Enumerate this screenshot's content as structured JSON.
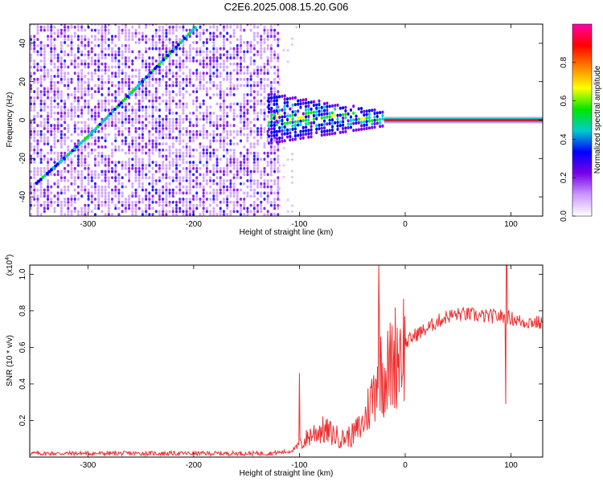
{
  "title": "C2E6.2025.008.15.20.G06",
  "chart_data": [
    {
      "type": "heatmap",
      "xlabel": "Height of straight line (km)",
      "ylabel": "Frequency (Hz)",
      "xlim": [
        -355,
        130
      ],
      "ylim": [
        -50,
        50
      ],
      "xticks": [
        -300,
        -200,
        -100,
        0,
        100
      ],
      "yticks": [
        -40,
        -20,
        0,
        20,
        40
      ],
      "colorbar": {
        "label": "Normalized spectral amplitude",
        "range": [
          0,
          1
        ],
        "ticks": [
          0.0,
          0.2,
          0.4,
          0.6,
          0.8
        ],
        "colors": [
          "#ffffff",
          "#cc99ff",
          "#7a00e6",
          "#0000ff",
          "#00cccc",
          "#00e600",
          "#ffff00",
          "#ff8000",
          "#ff0000",
          "#ff00aa"
        ]
      },
      "features": {
        "noise_region_x": [
          -355,
          -120
        ],
        "diagonal_trace": [
          [
            -350,
            -33
          ],
          [
            -300,
            -8
          ],
          [
            -250,
            20
          ],
          [
            -200,
            48
          ]
        ],
        "carrier_start_x": -130,
        "carrier_frequency": 0
      }
    },
    {
      "type": "line",
      "xlabel": "Height of straight line (km)",
      "ylabel": "SNR (10 * v/v)",
      "multiplier": "(x10",
      "multiplier_exp": "4",
      "multiplier_close": ")",
      "xlim": [
        -355,
        130
      ],
      "ylim": [
        0,
        1.05
      ],
      "xticks": [
        -300,
        -200,
        -100,
        0,
        100
      ],
      "yticks": [
        0.2,
        0.4,
        0.6,
        0.8,
        1.0
      ],
      "series": [
        {
          "color": "#ee3030",
          "x": [
            -355,
            -200,
            -130,
            -110,
            -100,
            -90,
            -80,
            -70,
            -60,
            -50,
            -40,
            -30,
            -25,
            -20,
            -15,
            -10,
            -5,
            0,
            10,
            20,
            30,
            40,
            50,
            60,
            70,
            80,
            90,
            100,
            110,
            120,
            130
          ],
          "y": [
            0.02,
            0.02,
            0.02,
            0.03,
            0.06,
            0.12,
            0.15,
            0.13,
            0.1,
            0.12,
            0.18,
            0.35,
            0.55,
            0.45,
            0.48,
            0.55,
            0.6,
            0.62,
            0.67,
            0.7,
            0.74,
            0.77,
            0.78,
            0.78,
            0.77,
            0.77,
            0.77,
            0.76,
            0.74,
            0.74,
            0.73
          ]
        }
      ]
    }
  ]
}
